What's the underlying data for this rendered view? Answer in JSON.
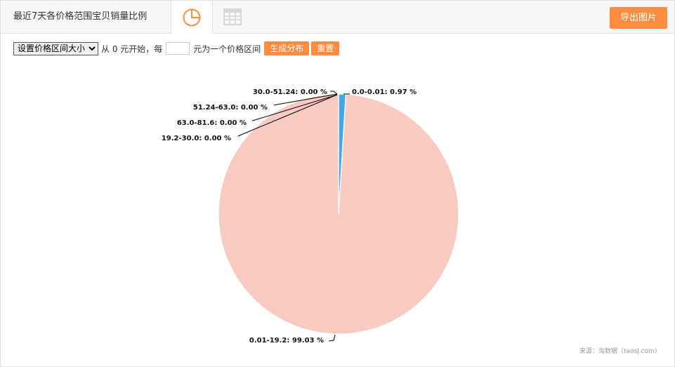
{
  "header": {
    "title": "最近7天各价格范围宝贝销量比例",
    "export_label": "导出图片"
  },
  "tabs": [
    {
      "name": "pie-view",
      "icon": "pie-chart-icon",
      "active": true
    },
    {
      "name": "table-view",
      "icon": "table-icon",
      "active": false
    }
  ],
  "controls": {
    "select_value": "设置价格区间大小",
    "from_label": "从 0 元开始，每",
    "input_value": "",
    "to_label": "元为一个价格区间",
    "generate_label": "生成分布",
    "reset_label": "重置"
  },
  "colors": {
    "accent": "#ff8c41",
    "slice_main": "#f8cac1",
    "slice_small": "#45a8e6"
  },
  "chart_data": {
    "type": "pie",
    "slices": [
      {
        "label": "0.0-0.01: 0.97 %",
        "category": "0.0-0.01",
        "value": 0.97,
        "color": "#45a8e6"
      },
      {
        "label": "0.01-19.2: 99.03 %",
        "category": "0.01-19.2",
        "value": 99.03,
        "color": "#f8cac1"
      },
      {
        "label": "19.2-30.0: 0.00 %",
        "category": "19.2-30.0",
        "value": 0.0,
        "color": "#f8cac1"
      },
      {
        "label": "63.0-81.6: 0.00 %",
        "category": "63.0-81.6",
        "value": 0.0,
        "color": "#f8cac1"
      },
      {
        "label": "51.24-63.0: 0.00 %",
        "category": "51.24-63.0",
        "value": 0.0,
        "color": "#f8cac1"
      },
      {
        "label": "30.0-51.24: 0.00 %",
        "category": "30.0-51.24",
        "value": 0.0,
        "color": "#f8cac1"
      }
    ]
  },
  "credit": "来源：淘数据（taosj.com)"
}
